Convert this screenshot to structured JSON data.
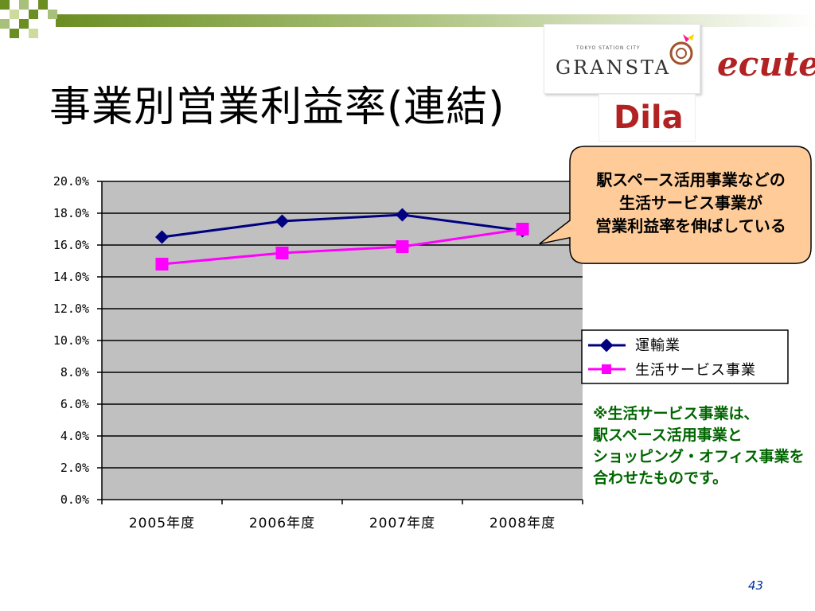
{
  "slide": {
    "title": "事業別営業利益率(連結)",
    "page_number": "43"
  },
  "logos": {
    "gransta_small": "TOKYO STATION CITY",
    "gransta": "GRANSTA",
    "ecute": "ecute",
    "dila": "Dila"
  },
  "callout": {
    "lines": [
      "駅スペース活用事業などの",
      "生活サービス事業が",
      "営業利益率を伸ばしている"
    ]
  },
  "note": {
    "lines": [
      "※生活サービス事業は、",
      "駅スペース活用事業と",
      "ショッピング・オフィス事業を",
      "合わせたものです。"
    ]
  },
  "colors": {
    "transport": "#000080",
    "life_service": "#ff00ff",
    "plot_bg": "#c0c0c0",
    "callout_fill": "#ffcc99",
    "deco_green": "#6b8e23"
  },
  "chart_data": {
    "type": "line",
    "categories": [
      "2005年度",
      "2006年度",
      "2007年度",
      "2008年度"
    ],
    "y_ticks": [
      "0.0%",
      "2.0%",
      "4.0%",
      "6.0%",
      "8.0%",
      "10.0%",
      "12.0%",
      "14.0%",
      "16.0%",
      "18.0%",
      "20.0%"
    ],
    "ylim": [
      0,
      20
    ],
    "grid": true,
    "legend_position": "right",
    "series": [
      {
        "name": "運輸業",
        "values": [
          16.5,
          17.5,
          17.9,
          16.9
        ],
        "marker": "diamond",
        "color": "#000080"
      },
      {
        "name": "生活サービス事業",
        "values": [
          14.8,
          15.5,
          15.9,
          17.0
        ],
        "marker": "square",
        "color": "#ff00ff"
      }
    ]
  }
}
